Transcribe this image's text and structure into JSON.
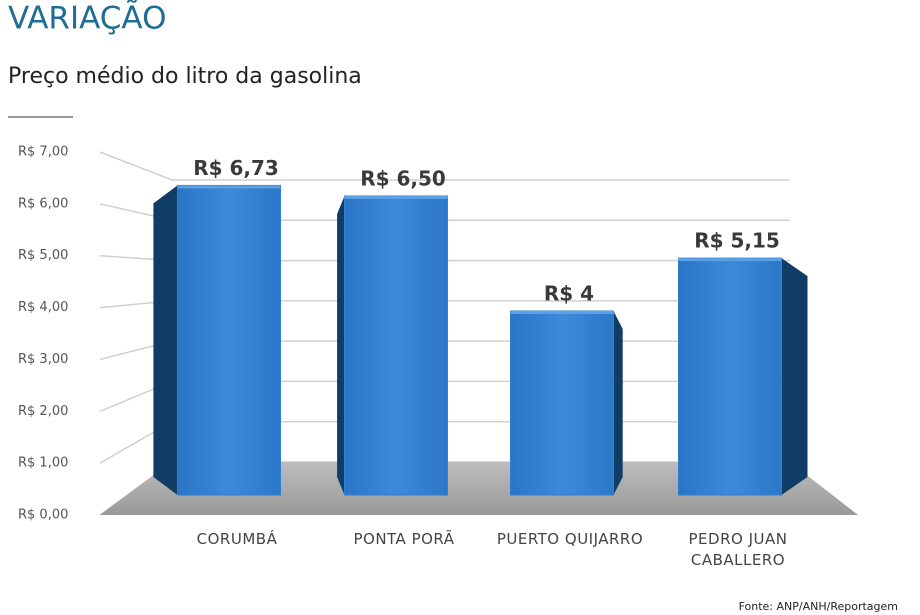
{
  "chart_data": {
    "type": "bar",
    "title": "VARIAÇÃO",
    "subtitle": "Preço médio do litro da gasolina",
    "categories": [
      "CORUMBÁ",
      "PONTA PORÃ",
      "PUERTO QUIJARRO",
      "PEDRO JUAN CABALLERO"
    ],
    "values": [
      6.73,
      6.5,
      4,
      5.15
    ],
    "value_labels": [
      "R$ 6,73",
      "R$ 6,50",
      "R$ 4",
      "R$ 5,15"
    ],
    "color": "#2f7fd2",
    "ylim": [
      0,
      7
    ],
    "yticks": [
      {
        "value": 0,
        "label": "R$ 0,00"
      },
      {
        "value": 1,
        "label": "R$ 1,00"
      },
      {
        "value": 2,
        "label": "R$ 2,00"
      },
      {
        "value": 3,
        "label": "R$ 3,00"
      },
      {
        "value": 4,
        "label": "R$ 4,00"
      },
      {
        "value": 5,
        "label": "R$ 5,00"
      },
      {
        "value": 6,
        "label": "R$ 6,00"
      },
      {
        "value": 7,
        "label": "R$ 7,00"
      }
    ],
    "grid": true,
    "source": "Fonte: ANP/ANH/Reportagem"
  }
}
